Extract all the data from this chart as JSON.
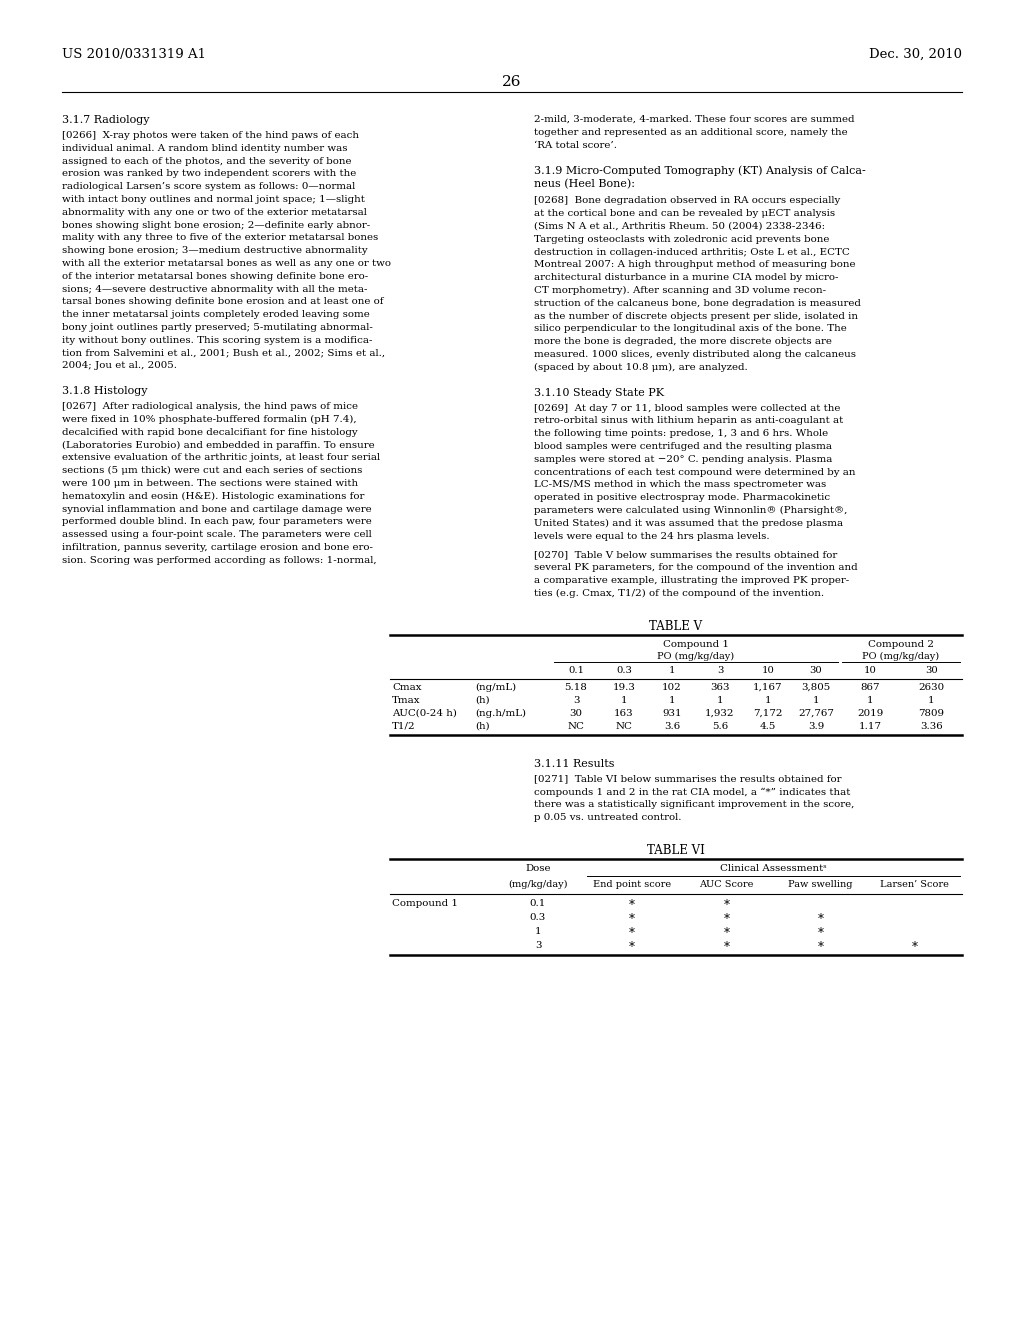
{
  "background_color": "#ffffff",
  "page_number": "26",
  "header_left": "US 2010/0331319 A1",
  "header_right": "Dec. 30, 2010",
  "lines_266": [
    "[0266]  X-ray photos were taken of the hind paws of each",
    "individual animal. A random blind identity number was",
    "assigned to each of the photos, and the severity of bone",
    "erosion was ranked by two independent scorers with the",
    "radiological Larsen’s score system as follows: 0—normal",
    "with intact bony outlines and normal joint space; 1—slight",
    "abnormality with any one or two of the exterior metatarsal",
    "bones showing slight bone erosion; 2—definite early abnor-",
    "mality with any three to five of the exterior metatarsal bones",
    "showing bone erosion; 3—medium destructive abnormality",
    "with all the exterior metatarsal bones as well as any one or two",
    "of the interior metatarsal bones showing definite bone ero-",
    "sions; 4—severe destructive abnormality with all the meta-",
    "tarsal bones showing definite bone erosion and at least one of",
    "the inner metatarsal joints completely eroded leaving some",
    "bony joint outlines partly preserved; 5-mutilating abnormal-",
    "ity without bony outlines. This scoring system is a modifica-",
    "tion from Salvemini et al., 2001; Bush et al., 2002; Sims et al.,",
    "2004; Jou et al., 2005."
  ],
  "lines_267": [
    "[0267]  After radiological analysis, the hind paws of mice",
    "were fixed in 10% phosphate-buffered formalin (pH 7.4),",
    "decalcified with rapid bone decalcifiant for fine histology",
    "(Laboratories Eurobio) and embedded in paraffin. To ensure",
    "extensive evaluation of the arthritic joints, at least four serial",
    "sections (5 μm thick) were cut and each series of sections",
    "were 100 μm in between. The sections were stained with",
    "hematoxylin and eosin (H&E). Histologic examinations for",
    "synovial inflammation and bone and cartilage damage were",
    "performed double blind. In each paw, four parameters were",
    "assessed using a four-point scale. The parameters were cell",
    "infiltration, pannus severity, cartilage erosion and bone ero-",
    "sion. Scoring was performed according as follows: 1-normal,"
  ],
  "lines_right_intro": [
    "2-mild, 3-moderate, 4-marked. These four scores are summed",
    "together and represented as an additional score, namely the",
    "‘RA total score’."
  ],
  "heading_319": [
    "3.1.9 Micro-Computed Tomography (KT) Analysis of Calca-",
    "neus (Heel Bone):"
  ],
  "lines_268": [
    "[0268]  Bone degradation observed in RA occurs especially",
    "at the cortical bone and can be revealed by μECT analysis",
    "(Sims N A et al., Arthritis Rheum. 50 (2004) 2338-2346:",
    "Targeting osteoclasts with zoledronic acid prevents bone",
    "destruction in collagen-induced arthritis; Oste L et al., ECTC",
    "Montreal 2007: A high throughput method of measuring bone",
    "architectural disturbance in a murine CIA model by micro-",
    "CT morphometry). After scanning and 3D volume recon-",
    "struction of the calcaneus bone, bone degradation is measured",
    "as the number of discrete objects present per slide, isolated in",
    "silico perpendicular to the longitudinal axis of the bone. The",
    "more the bone is degraded, the more discrete objects are",
    "measured. 1000 slices, evenly distributed along the calcaneus",
    "(spaced by about 10.8 μm), are analyzed."
  ],
  "lines_269": [
    "[0269]  At day 7 or 11, blood samples were collected at the",
    "retro-orbital sinus with lithium heparin as anti-coagulant at",
    "the following time points: predose, 1, 3 and 6 hrs. Whole",
    "blood samples were centrifuged and the resulting plasma",
    "samples were stored at −20° C. pending analysis. Plasma",
    "concentrations of each test compound were determined by an",
    "LC-MS/MS method in which the mass spectrometer was",
    "operated in positive electrospray mode. Pharmacokinetic",
    "parameters were calculated using Winnonlin® (Pharsight®,",
    "United States) and it was assumed that the predose plasma",
    "levels were equal to the 24 hrs plasma levels."
  ],
  "lines_270": [
    "[0270]  Table V below summarises the results obtained for",
    "several PK parameters, for the compound of the invention and",
    "a comparative example, illustrating the improved PK proper-",
    "ties (e.g. Cmax, T1/2) of the compound of the invention."
  ],
  "lines_271": [
    "[0271]  Table VI below summarises the results obtained for",
    "compounds 1 and 2 in the rat CIA model, a “*” indicates that",
    "there was a statistically significant improvement in the score,",
    "p 0.05 vs. untreated control."
  ],
  "table5_title": "TABLE V",
  "table5_doses": [
    "0.1",
    "0.3",
    "1",
    "3",
    "10",
    "30",
    "10",
    "30"
  ],
  "table5_rows": [
    [
      "Cmax",
      "(ng/mL)",
      "5.18",
      "19.3",
      "102",
      "363",
      "1,167",
      "3,805",
      "867",
      "2630"
    ],
    [
      "Tmax",
      "(h)",
      "3",
      "1",
      "1",
      "1",
      "1",
      "1",
      "1",
      "1"
    ],
    [
      "AUC(0-24 h)",
      "(ng.h/mL)",
      "30",
      "163",
      "931",
      "1,932",
      "7,172",
      "27,767",
      "2019",
      "7809"
    ],
    [
      "T1/2",
      "(h)",
      "NC",
      "NC",
      "3.6",
      "5.6",
      "4.5",
      "3.9",
      "1.17",
      "3.36"
    ]
  ],
  "table6_title": "TABLE VI",
  "table6_rows": [
    [
      "Compound 1",
      "0.1",
      "*",
      "*",
      "",
      ""
    ],
    [
      "",
      "0.3",
      "*",
      "*",
      "*",
      ""
    ],
    [
      "",
      "1",
      "*",
      "*",
      "*",
      ""
    ],
    [
      "",
      "3",
      "*",
      "*",
      "*",
      "*"
    ]
  ]
}
